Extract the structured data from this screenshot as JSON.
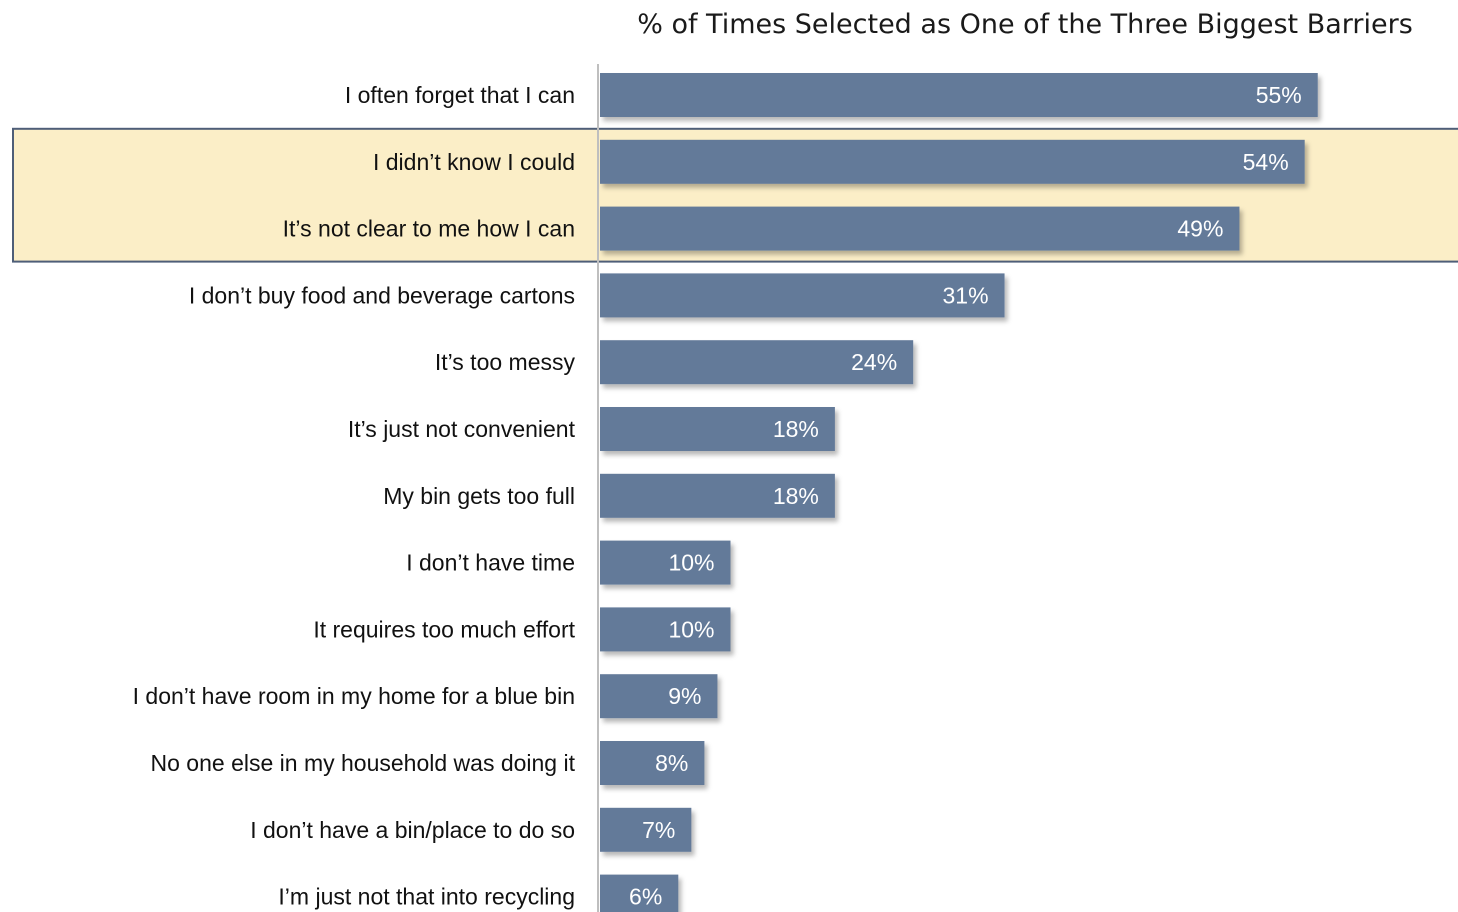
{
  "chart_data": {
    "type": "bar",
    "orientation": "horizontal",
    "title": "% of Times Selected as One of the Three Biggest Barriers",
    "categories": [
      "I often forget that I can",
      "I didn’t know I could",
      "It’s not clear to me how I can",
      "I don’t buy food and beverage cartons",
      "It’s too messy",
      "It’s just not convenient",
      "My bin gets too full",
      "I don’t have time",
      "It requires too much effort",
      "I don’t have room in my home for a blue bin",
      "No one else in my household was doing it",
      "I don’t have a bin/place to do so",
      "I’m just not that into recycling"
    ],
    "values": [
      55,
      54,
      49,
      31,
      24,
      18,
      18,
      10,
      10,
      9,
      8,
      7,
      6
    ],
    "labels": [
      "55%",
      "54%",
      "49%",
      "31%",
      "24%",
      "18%",
      "18%",
      "10%",
      "10%",
      "9%",
      "8%",
      "7%",
      "6%"
    ],
    "highlighted_categories": [
      1,
      2
    ],
    "colors": {
      "bar": "#647a99",
      "bar_shadow": "#c4c4c4",
      "highlight_fill": "#fbeec7",
      "highlight_border": "#4e5e78",
      "axis": "#bfbfbf"
    },
    "grid": false,
    "legend": "none"
  }
}
